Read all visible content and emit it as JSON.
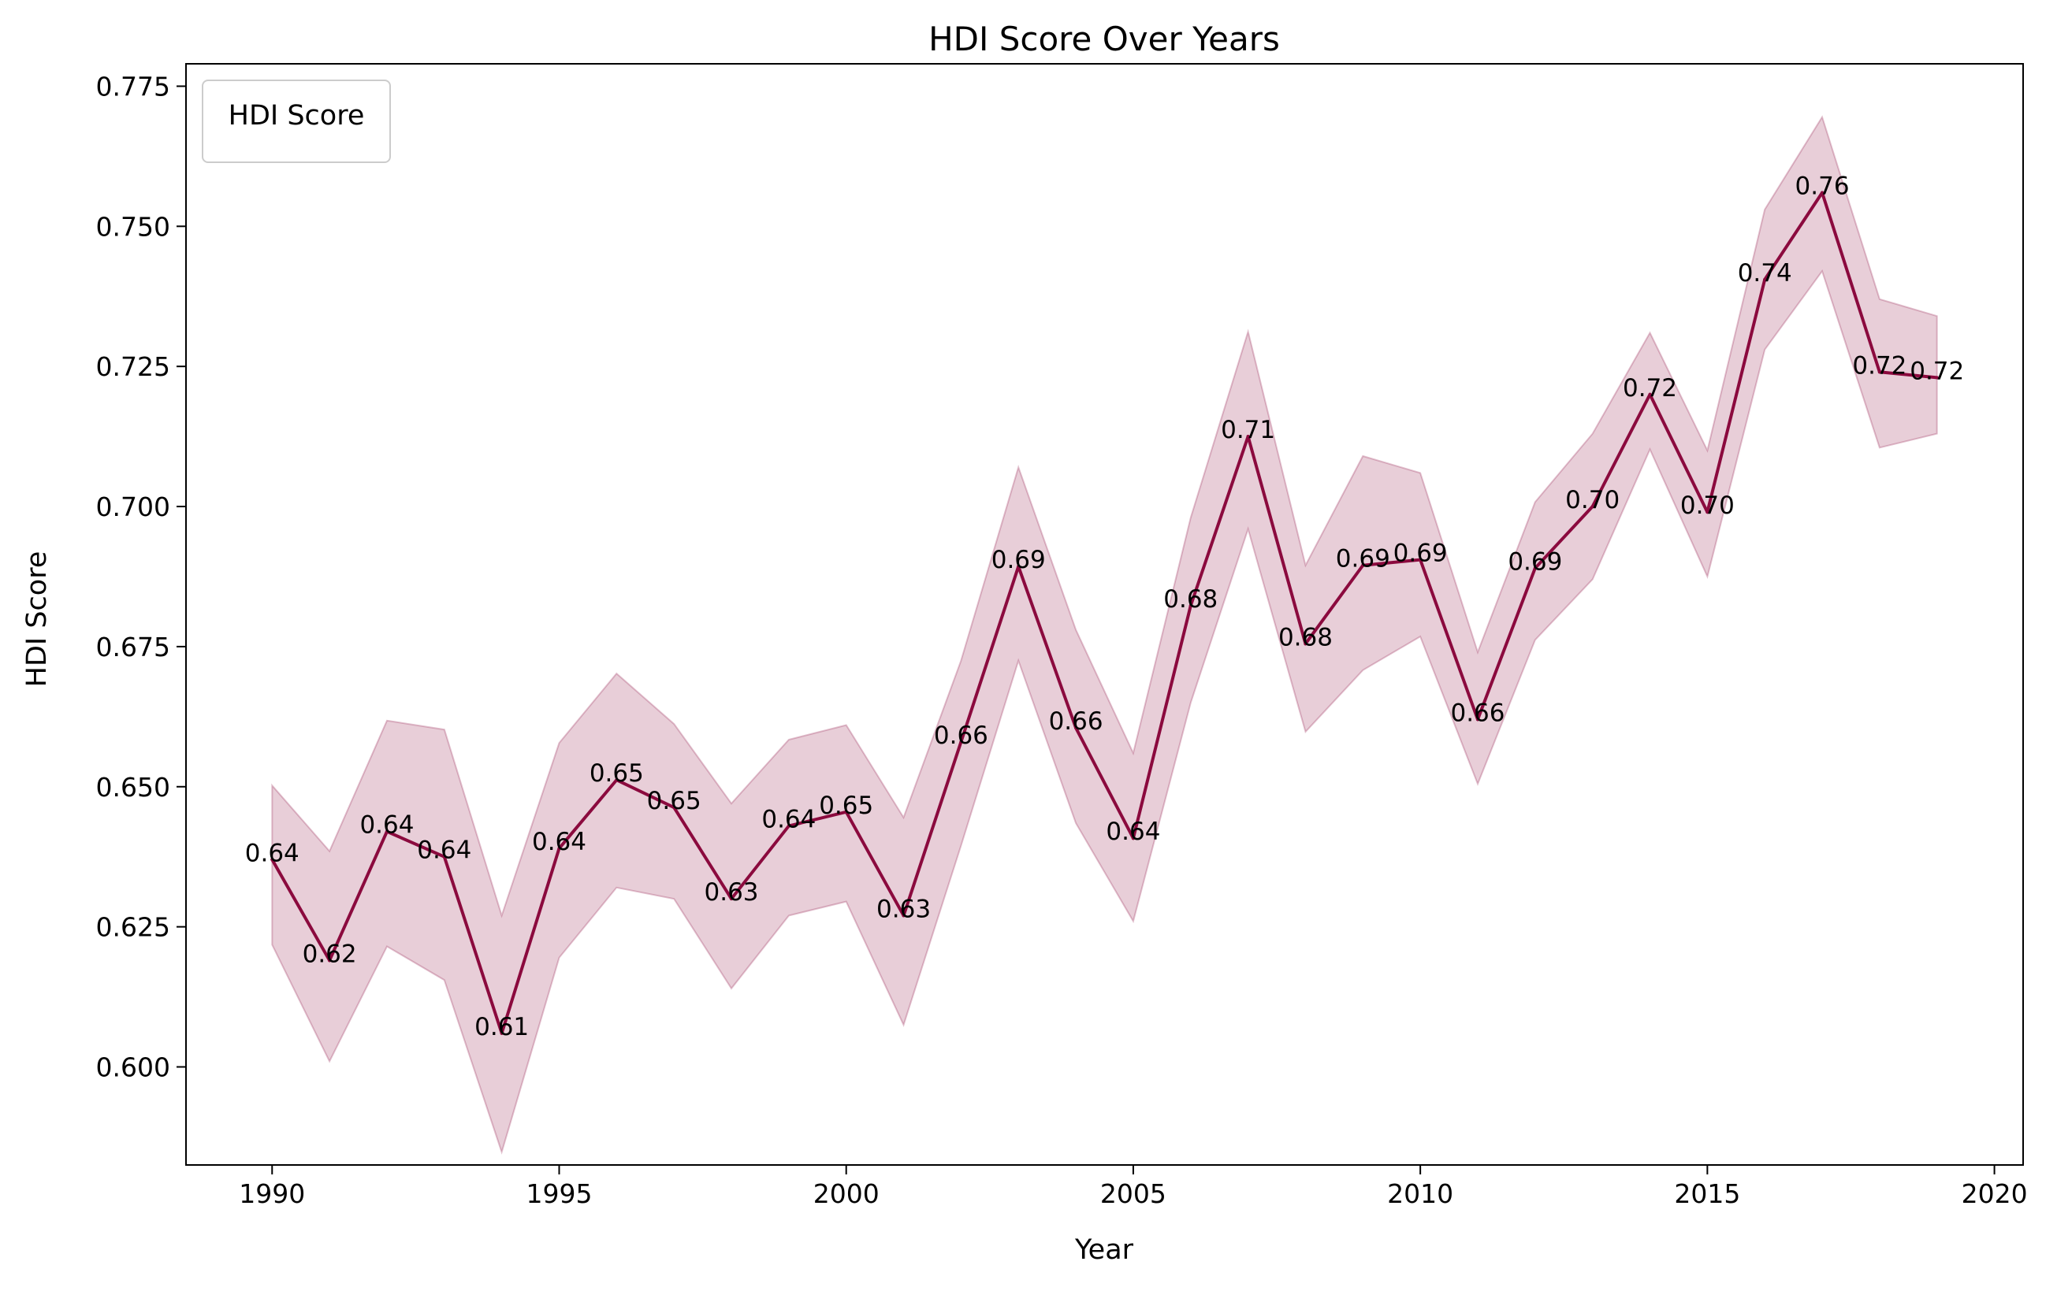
{
  "chart_data": {
    "type": "area",
    "title": "HDI Score Over Years",
    "xlabel": "Year",
    "ylabel": "HDI Score",
    "xlim": [
      1988.5,
      2020.5
    ],
    "ylim": [
      0.5825,
      0.779
    ],
    "xticks": [
      1990,
      1995,
      2000,
      2005,
      2010,
      2015,
      2020
    ],
    "xtick_labels": [
      "1990",
      "1995",
      "2000",
      "2005",
      "2010",
      "2015",
      "2020"
    ],
    "yticks": [
      0.6,
      0.625,
      0.65,
      0.675,
      0.7,
      0.725,
      0.75,
      0.775
    ],
    "ytick_labels": [
      "0.600",
      "0.625",
      "0.650",
      "0.675",
      "0.700",
      "0.725",
      "0.750",
      "0.775"
    ],
    "grid": false,
    "legend": {
      "title": "HDI Score",
      "location": "upper left",
      "entries": []
    },
    "colors": {
      "line": "#8b0a3e",
      "band": "#8b0a3e"
    },
    "x": [
      1990,
      1991,
      1992,
      1993,
      1994,
      1995,
      1996,
      1997,
      1998,
      1999,
      2000,
      2001,
      2002,
      2003,
      2004,
      2005,
      2006,
      2007,
      2008,
      2009,
      2010,
      2011,
      2012,
      2013,
      2014,
      2015,
      2016,
      2017,
      2018,
      2019
    ],
    "series": [
      {
        "values": [
          0.637,
          0.619,
          0.642,
          0.6375,
          0.606,
          0.639,
          0.6512,
          0.6463,
          0.63,
          0.643,
          0.6455,
          0.627,
          0.658,
          0.6893,
          0.6605,
          0.6408,
          0.6823,
          0.7125,
          0.6755,
          0.6895,
          0.6905,
          0.662,
          0.689,
          0.7,
          0.72,
          0.699,
          0.7405,
          0.756,
          0.724,
          0.723
        ],
        "lower": [
          0.6218,
          0.601,
          0.6215,
          0.6155,
          0.5848,
          0.6195,
          0.632,
          0.63,
          0.614,
          0.627,
          0.6295,
          0.6075,
          0.6395,
          0.6725,
          0.6435,
          0.626,
          0.665,
          0.696,
          0.6598,
          0.6708,
          0.6768,
          0.6505,
          0.6762,
          0.687,
          0.7102,
          0.6875,
          0.728,
          0.742,
          0.7105,
          0.713
        ],
        "upper": [
          0.6502,
          0.6385,
          0.6618,
          0.6602,
          0.627,
          0.6578,
          0.6702,
          0.6612,
          0.647,
          0.6584,
          0.661,
          0.6445,
          0.6725,
          0.707,
          0.678,
          0.656,
          0.698,
          0.7312,
          0.6895,
          0.709,
          0.706,
          0.674,
          0.7008,
          0.713,
          0.731,
          0.71,
          0.753,
          0.7695,
          0.737,
          0.734
        ]
      }
    ],
    "data_labels": [
      "0.64",
      "0.62",
      "0.64",
      "0.64",
      "0.61",
      "0.64",
      "0.65",
      "0.65",
      "0.63",
      "0.64",
      "0.65",
      "0.63",
      "0.66",
      "0.69",
      "0.66",
      "0.64",
      "0.68",
      "0.71",
      "0.68",
      "0.69",
      "0.69",
      "0.66",
      "0.69",
      "0.70",
      "0.72",
      "0.70",
      "0.74",
      "0.76",
      "0.72",
      "0.72"
    ]
  }
}
